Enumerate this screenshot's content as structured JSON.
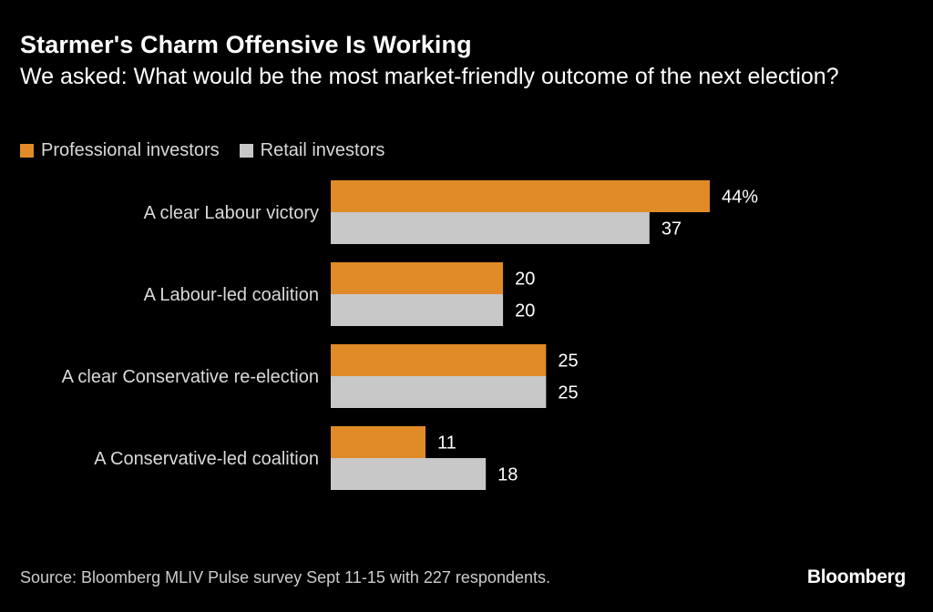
{
  "header": {
    "title": "Starmer's Charm Offensive Is Working",
    "subtitle": "We asked: What would be the most market-friendly outcome of the next election?"
  },
  "legend": {
    "items": [
      {
        "label": "Professional investors",
        "color": "#e08b27"
      },
      {
        "label": "Retail investors",
        "color": "#c8c8c8"
      }
    ]
  },
  "chart_data": {
    "type": "bar",
    "orientation": "horizontal",
    "title": "Starmer's Charm Offensive Is Working",
    "subtitle": "We asked: What would be the most market-friendly outcome of the next election?",
    "categories": [
      "A clear Labour victory",
      "A Labour-led coalition",
      "A clear Conservative re-election",
      "A Conservative-led coalition"
    ],
    "series": [
      {
        "name": "Professional investors",
        "color": "#e08b27",
        "values": [
          44,
          20,
          25,
          11
        ],
        "labels": [
          "44%",
          "20",
          "25",
          "11"
        ]
      },
      {
        "name": "Retail investors",
        "color": "#c8c8c8",
        "values": [
          37,
          20,
          25,
          18
        ],
        "labels": [
          "37",
          "20",
          "25",
          "18"
        ]
      }
    ],
    "xlim": [
      0,
      44
    ],
    "grid": false,
    "legend_position": "top-left"
  },
  "footer": {
    "source": "Source: Bloomberg MLIV Pulse survey Sept 11-15 with 227 respondents.",
    "logo": "Bloomberg"
  }
}
